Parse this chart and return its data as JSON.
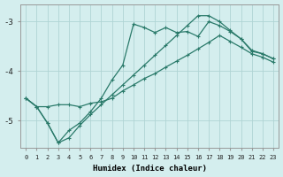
{
  "xlabel": "Humidex (Indice chaleur)",
  "bg_color": "#d4eeee",
  "grid_color": "#b0d4d4",
  "line_color": "#2a7a6a",
  "xlim": [
    -0.5,
    23.5
  ],
  "ylim": [
    -5.55,
    -2.65
  ],
  "yticks": [
    -5,
    -4,
    -3
  ],
  "xticks": [
    0,
    1,
    2,
    3,
    4,
    5,
    6,
    7,
    8,
    9,
    10,
    11,
    12,
    13,
    14,
    15,
    16,
    17,
    18,
    19,
    20,
    21,
    22,
    23
  ],
  "line1_x": [
    0,
    1,
    2,
    3,
    4,
    5,
    6,
    7,
    8,
    9,
    10,
    11,
    12,
    13,
    14,
    15,
    16,
    17,
    18,
    19,
    20,
    21,
    22,
    23
  ],
  "line1_y": [
    -4.55,
    -4.72,
    -4.72,
    -4.68,
    -4.68,
    -4.72,
    -4.65,
    -4.62,
    -4.55,
    -4.4,
    -4.28,
    -4.15,
    -4.05,
    -3.92,
    -3.8,
    -3.68,
    -3.55,
    -3.42,
    -3.28,
    -3.4,
    -3.52,
    -3.65,
    -3.72,
    -3.82
  ],
  "line2_x": [
    0,
    1,
    2,
    3,
    4,
    5,
    6,
    7,
    8,
    9,
    10,
    11,
    12,
    13,
    14,
    15,
    16,
    17,
    18,
    19,
    20,
    21,
    22,
    23
  ],
  "line2_y": [
    -4.55,
    -4.72,
    -5.05,
    -5.45,
    -5.2,
    -5.05,
    -4.82,
    -4.55,
    -4.18,
    -3.88,
    -3.05,
    -3.12,
    -3.22,
    -3.12,
    -3.22,
    -3.2,
    -3.3,
    -3.0,
    -3.08,
    -3.2,
    -3.35,
    -3.6,
    -3.65,
    -3.75
  ],
  "line3_x": [
    0,
    1,
    2,
    3,
    4,
    5,
    6,
    7,
    8,
    9,
    10,
    11,
    12,
    13,
    14,
    15,
    16,
    17,
    18,
    19,
    20,
    21,
    22,
    23
  ],
  "line3_y": [
    -4.55,
    -4.72,
    -5.05,
    -5.45,
    -5.35,
    -5.1,
    -4.88,
    -4.68,
    -4.48,
    -4.28,
    -4.08,
    -3.88,
    -3.68,
    -3.48,
    -3.28,
    -3.08,
    -2.88,
    -2.88,
    -3.0,
    -3.18,
    -3.35,
    -3.58,
    -3.65,
    -3.75
  ]
}
